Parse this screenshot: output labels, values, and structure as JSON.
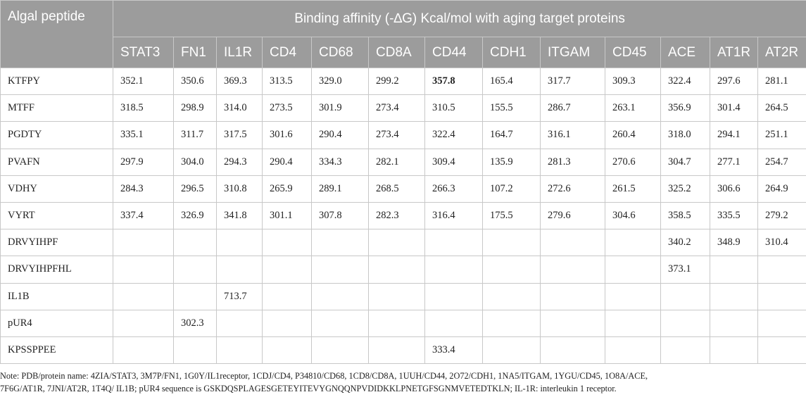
{
  "table": {
    "corner_header": "Algal peptide",
    "group_header": "Binding affinity (-∆G) Kcal/mol with aging target proteins",
    "columns": [
      "STAT3",
      "FN1",
      "IL1R",
      "CD4",
      "CD68",
      "CD8A",
      "CD44",
      "CDH1",
      "ITGAM",
      "CD45",
      "ACE",
      "AT1R",
      "AT2R"
    ],
    "rows": [
      {
        "peptide": "KTFPY",
        "values": [
          "352.1",
          "350.6",
          "369.3",
          "313.5",
          "329.0",
          "299.2",
          "357.8",
          "165.4",
          "317.7",
          "309.3",
          "322.4",
          "297.6",
          "281.1"
        ],
        "bold_index": 6
      },
      {
        "peptide": "MTFF",
        "values": [
          "318.5",
          "298.9",
          "314.0",
          "273.5",
          "301.9",
          "273.4",
          "310.5",
          "155.5",
          "286.7",
          "263.1",
          "356.9",
          "301.4",
          "264.5"
        ]
      },
      {
        "peptide": "PGDTY",
        "values": [
          "335.1",
          "311.7",
          "317.5",
          "301.6",
          "290.4",
          "273.4",
          "322.4",
          "164.7",
          "316.1",
          "260.4",
          "318.0",
          "294.1",
          "251.1"
        ]
      },
      {
        "peptide": "PVAFN",
        "values": [
          "297.9",
          "304.0",
          "294.3",
          "290.4",
          "334.3",
          "282.1",
          "309.4",
          "135.9",
          "281.3",
          "270.6",
          "304.7",
          "277.1",
          "254.7"
        ]
      },
      {
        "peptide": "VDHY",
        "values": [
          "284.3",
          "296.5",
          "310.8",
          "265.9",
          "289.1",
          "268.5",
          "266.3",
          "107.2",
          "272.6",
          "261.5",
          "325.2",
          "306.6",
          "264.9"
        ]
      },
      {
        "peptide": "VYRT",
        "values": [
          "337.4",
          "326.9",
          "341.8",
          "301.1",
          "307.8",
          "282.3",
          "316.4",
          "175.5",
          "279.6",
          "304.6",
          "358.5",
          "335.5",
          "279.2"
        ]
      },
      {
        "peptide": "DRVYIHPF",
        "values": [
          "",
          "",
          "",
          "",
          "",
          "",
          "",
          "",
          "",
          "",
          "340.2",
          "348.9",
          "310.4"
        ]
      },
      {
        "peptide": "DRVYIHPFHL",
        "values": [
          "",
          "",
          "",
          "",
          "",
          "",
          "",
          "",
          "",
          "",
          "373.1",
          "",
          ""
        ]
      },
      {
        "peptide": "IL1B",
        "values": [
          "",
          "",
          "713.7",
          "",
          "",
          "",
          "",
          "",
          "",
          "",
          "",
          "",
          ""
        ]
      },
      {
        "peptide": "pUR4",
        "values": [
          "",
          "302.3",
          "",
          "",
          "",
          "",
          "",
          "",
          "",
          "",
          "",
          "",
          ""
        ]
      },
      {
        "peptide": "KPSSPPEE",
        "values": [
          "",
          "",
          "",
          "",
          "",
          "",
          "333.4",
          "",
          "",
          "",
          "",
          "",
          ""
        ]
      }
    ]
  },
  "note": {
    "line1": "Note: PDB/protein name: 4ZIA/STAT3, 3M7P/FN1, 1G0Y/IL1receptor, 1CDJ/CD4, P34810/CD68, 1CD8/CD8A, 1UUH/CD44, 2O72/CDH1, 1NA5/ITGAM, 1YGU/CD45, 1O8A/ACE,",
    "line2": "7F6G/AT1R, 7JNI/AT2R, 1T4Q/ IL1B; pUR4 sequence is GSKDQSPLAGESGETEYITEVYGNQQNPVDIDKKLPNETGFSGNMVETEDTKLN; IL-1R: interleukin 1 receptor."
  }
}
